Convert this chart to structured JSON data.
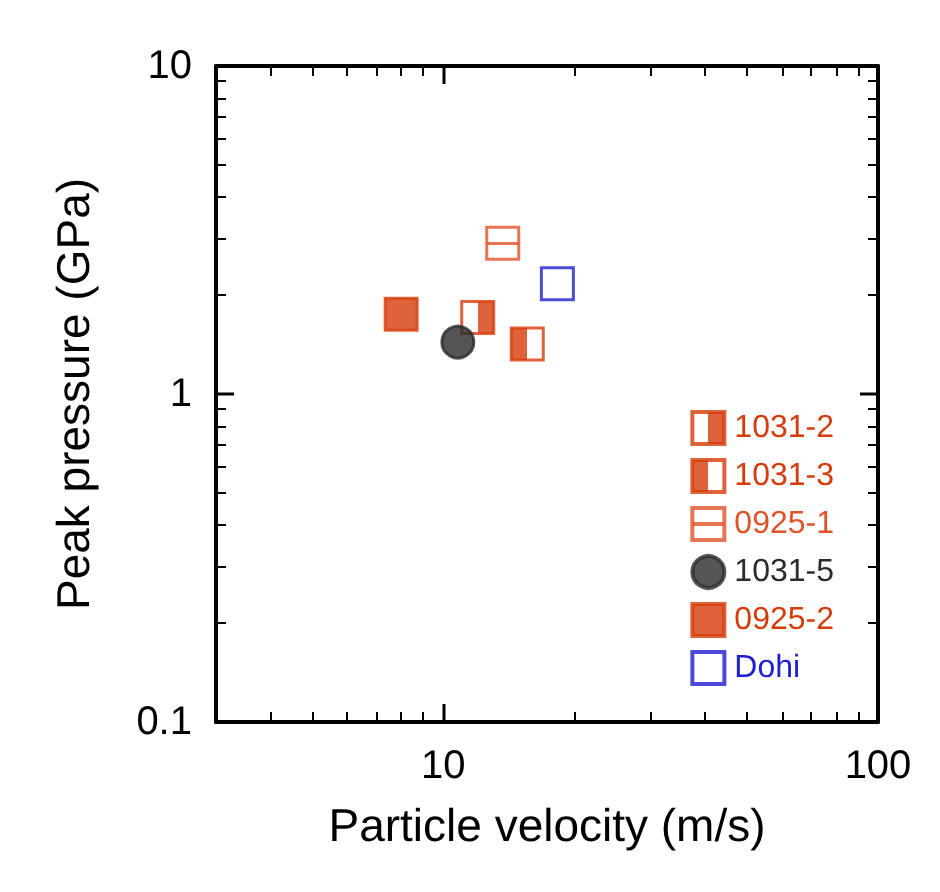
{
  "chart_data": {
    "type": "scatter",
    "xlabel": "Particle velocity (m/s)",
    "ylabel": "Peak pressure (GPa)",
    "log": "xy",
    "xlim": [
      3,
      100
    ],
    "ylim": [
      0.1,
      10
    ],
    "xticks": [
      10,
      100
    ],
    "yticks": [
      0.1,
      1,
      10
    ],
    "grid": false,
    "legend": "bottom right",
    "series": [
      {
        "name": "1031-2",
        "color": "#d63c0a",
        "marker": "square",
        "x": [
          12.0
        ],
        "values": [
          1.71
        ]
      },
      {
        "name": "1031-3",
        "color": "#d63c0a",
        "marker": "square",
        "x": [
          15.6
        ],
        "values": [
          1.42
        ]
      },
      {
        "name": "0925-1",
        "color": "#e0542a",
        "marker": "square",
        "x": [
          13.7
        ],
        "values": [
          2.88
        ]
      },
      {
        "name": "1031-5",
        "color": "#2b2b2b",
        "marker": "circle",
        "x": [
          10.8
        ],
        "values": [
          1.44
        ]
      },
      {
        "name": "0925-2",
        "color": "#d63c0a",
        "marker": "square",
        "x": [
          8.0
        ],
        "values": [
          1.75
        ]
      },
      {
        "name": "Dohi",
        "color": "#1e1ed2",
        "marker": "square",
        "x": [
          18.3
        ],
        "values": [
          2.17
        ]
      }
    ]
  }
}
